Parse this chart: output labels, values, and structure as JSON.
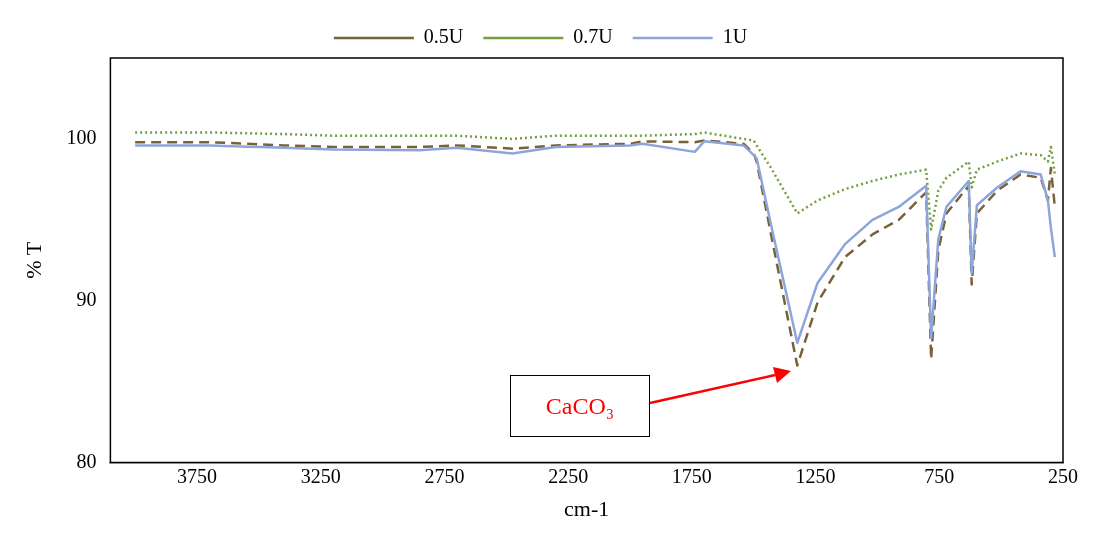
{
  "chart_data": {
    "type": "line",
    "xlabel": "cm-1",
    "ylabel": "% T",
    "x": [
      4000,
      3700,
      3400,
      3200,
      2850,
      2700,
      2475,
      2300,
      2000,
      1950,
      1738,
      1700,
      1541,
      1500,
      1488,
      1430,
      1324,
      1242,
      1131,
      1020,
      914,
      803,
      783,
      754,
      721,
      631,
      619,
      598,
      516,
      422,
      340,
      311,
      299,
      283
    ],
    "series": [
      {
        "name": "0.5U",
        "color": "#7a6238",
        "line_style": "dashed",
        "values": [
          99.8,
          99.8,
          99.6,
          99.5,
          99.5,
          99.6,
          99.4,
          99.6,
          99.7,
          99.85,
          99.8,
          99.9,
          99.7,
          99.1,
          98.6,
          94.1,
          86.0,
          89.9,
          92.7,
          94.1,
          95.0,
          96.7,
          86.4,
          93.1,
          95.4,
          97.1,
          91.0,
          95.4,
          96.8,
          97.8,
          97.6,
          96.2,
          98.2,
          95.8
        ]
      },
      {
        "name": "0.7U",
        "color": "#70a040",
        "line_style": "dotted",
        "values": [
          100.4,
          100.4,
          100.3,
          100.2,
          100.2,
          100.2,
          100.0,
          100.2,
          100.2,
          100.2,
          100.3,
          100.4,
          100.0,
          99.9,
          99.6,
          98.2,
          95.4,
          96.2,
          96.9,
          97.4,
          97.8,
          98.1,
          94.4,
          96.8,
          97.6,
          98.6,
          97.0,
          98.1,
          98.6,
          99.1,
          99.0,
          98.6,
          99.5,
          97.8
        ]
      },
      {
        "name": "1U",
        "color": "#8ea5dc",
        "line_style": "solid",
        "values": [
          99.6,
          99.6,
          99.45,
          99.35,
          99.3,
          99.45,
          99.1,
          99.5,
          99.6,
          99.7,
          99.2,
          99.85,
          99.6,
          99.0,
          98.8,
          94.7,
          87.4,
          91.1,
          93.5,
          95.0,
          95.8,
          97.1,
          87.7,
          93.8,
          95.8,
          97.4,
          91.7,
          95.9,
          97.0,
          98.0,
          97.8,
          96.2,
          94.5,
          92.7
        ]
      }
    ],
    "xlim": [
      4100,
      250
    ],
    "xticks": [
      3750,
      3250,
      2750,
      2250,
      1750,
      1250,
      750,
      250
    ],
    "ylim": [
      80,
      105
    ],
    "yticks": [
      80,
      90,
      100
    ],
    "grid": false,
    "legend": "top",
    "marker": "none",
    "annotations": [
      "CaCO₃"
    ]
  }
}
